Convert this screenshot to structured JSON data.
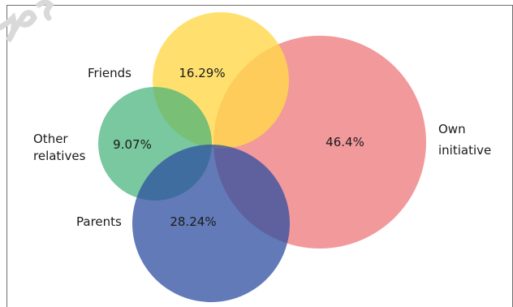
{
  "diagram": {
    "type": "proportional-venn",
    "colors": {
      "own_initiative": "#ee7c80",
      "friends": "#ffd84a",
      "other_relatives": "#45b37a",
      "parents": "#2e4fa0",
      "frame": "#6e6e6e",
      "text": "#1a1a1a",
      "watermark": "#d9d9d9"
    },
    "circles": [
      {
        "id": "own_initiative",
        "name_line1": "Own",
        "name_line2": "initiative",
        "value": "46.4%"
      },
      {
        "id": "friends",
        "name_line1": "Friends",
        "name_line2": "",
        "value": "16.29%"
      },
      {
        "id": "other_relatives",
        "name_line1": "Other",
        "name_line2": "relatives",
        "value": "9.07%"
      },
      {
        "id": "parents",
        "name_line1": "Parents",
        "name_line2": "",
        "value": "28.24%"
      }
    ]
  }
}
